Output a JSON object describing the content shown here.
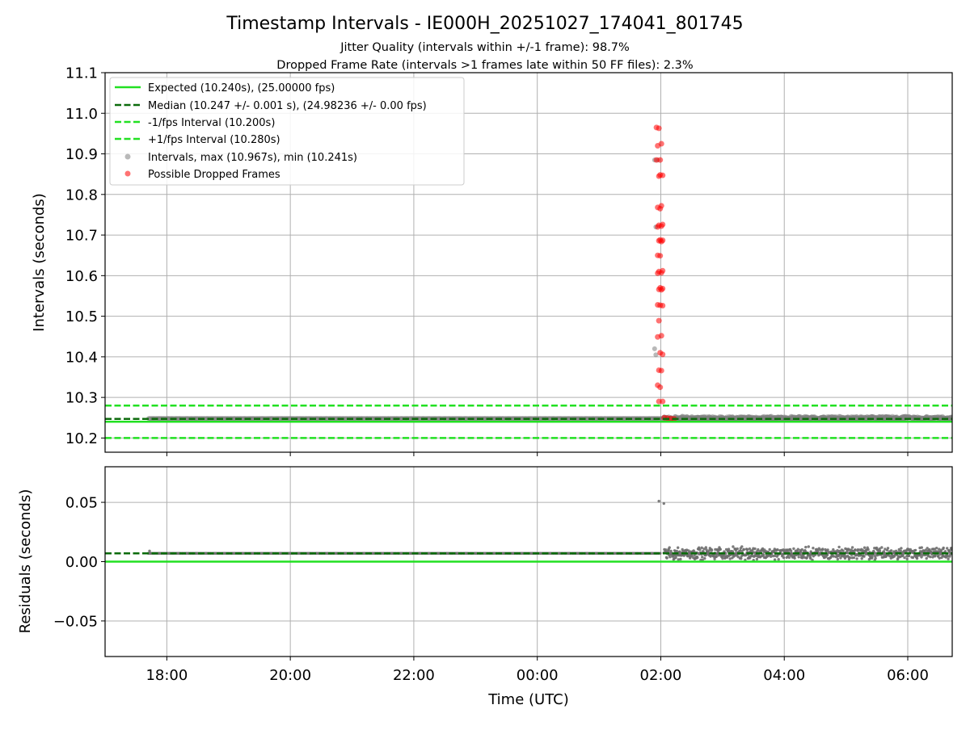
{
  "chart_data": [
    {
      "type": "scatter",
      "title": "Timestamp Intervals - IE000H_20251027_174041_801745",
      "subtitle_lines": [
        "Jitter Quality (intervals within +/-1 frame): 98.7%",
        "Dropped Frame Rate (intervals >1 frames late within 50 FF files): 2.3%"
      ],
      "xlabel": "",
      "ylabel": "Intervals (seconds)",
      "xlim_hours": [
        17.0,
        30.72
      ],
      "ylim": [
        10.165,
        11.1
      ],
      "yticks": [
        10.2,
        10.3,
        10.4,
        10.5,
        10.6,
        10.7,
        10.8,
        10.9,
        11.0,
        11.1
      ],
      "ytick_labels": [
        "10.2",
        "10.3",
        "10.4",
        "10.5",
        "10.6",
        "10.7",
        "10.8",
        "10.9",
        "11.0",
        "11.1"
      ],
      "grid": true,
      "legend_position": "top-left",
      "legend": [
        "Expected (10.240s), (25.00000 fps)",
        "Median (10.247 +/- 0.001 s), (24.98236 +/- 0.00 fps)",
        "-1/fps Interval (10.200s)",
        "+1/fps Interval (10.280s)",
        "Intervals, max (10.967s), min (10.241s)",
        "Possible Dropped Frames"
      ],
      "reference_lines": [
        {
          "name": "Expected",
          "y": 10.24,
          "style": "solid",
          "color": "#22e022"
        },
        {
          "name": "Median",
          "y": 10.247,
          "style": "dashed",
          "color": "#0b6b0b"
        },
        {
          "name": "-1/fps Interval",
          "y": 10.2,
          "style": "dashed",
          "color": "#22e022"
        },
        {
          "name": "+1/fps Interval",
          "y": 10.28,
          "style": "dashed",
          "color": "#22e022"
        }
      ],
      "series": [
        {
          "name": "Intervals",
          "color": "#808080",
          "segments": [
            {
              "x_start": 17.7,
              "x_end": 29.95,
              "y": 10.248
            },
            {
              "x_start": 26.05,
              "x_end": 30.72,
              "y": 10.249,
              "spread": 0.005
            }
          ],
          "outliers": [
            {
              "x": 25.9,
              "y": 10.885
            },
            {
              "x": 25.92,
              "y": 10.72
            },
            {
              "x": 25.9,
              "y": 10.42
            },
            {
              "x": 25.92,
              "y": 10.405
            },
            {
              "x": 25.95,
              "y": 10.885
            }
          ]
        },
        {
          "name": "Possible Dropped Frames",
          "color": "#ff0000",
          "x_range": [
            25.93,
            26.25
          ],
          "y_values": [
            10.965,
            10.963,
            10.925,
            10.92,
            10.885,
            10.885,
            10.848,
            10.847,
            10.845,
            10.772,
            10.768,
            10.765,
            10.726,
            10.724,
            10.722,
            10.72,
            10.688,
            10.687,
            10.686,
            10.684,
            10.65,
            10.649,
            10.612,
            10.61,
            10.607,
            10.606,
            10.57,
            10.568,
            10.566,
            10.565,
            10.528,
            10.527,
            10.526,
            10.489,
            10.452,
            10.449,
            10.41,
            10.406,
            10.367,
            10.366,
            10.33,
            10.325,
            10.29,
            10.29,
            10.25,
            10.249,
            10.248,
            10.247
          ]
        }
      ]
    },
    {
      "type": "scatter",
      "xlabel": "Time (UTC)",
      "ylabel": "Residuals (seconds)",
      "xlim_hours": [
        17.0,
        30.72
      ],
      "xtick_hours": [
        18,
        20,
        22,
        24,
        26,
        28,
        30
      ],
      "xtick_labels": [
        "18:00",
        "20:00",
        "22:00",
        "00:00",
        "02:00",
        "04:00",
        "06:00"
      ],
      "ylim": [
        -0.08,
        0.08
      ],
      "yticks": [
        -0.05,
        0.0,
        0.05
      ],
      "ytick_labels": [
        "−0.05",
        "0.00",
        "0.05"
      ],
      "grid": true,
      "reference_lines": [
        {
          "name": "Expected",
          "y": 0.0,
          "style": "solid",
          "color": "#22e022"
        },
        {
          "name": "Median",
          "y": 0.007,
          "style": "dashed",
          "color": "#0b6b0b"
        }
      ],
      "series": [
        {
          "name": "Residuals",
          "color": "#6e6e6e",
          "segments": [
            {
              "x_start": 17.7,
              "x_end": 26.0,
              "y": 0.007
            },
            {
              "x_start": 26.05,
              "x_end": 30.72,
              "y": 0.007,
              "spread": 0.006
            }
          ],
          "outliers": [
            {
              "x": 25.97,
              "y": 0.051
            },
            {
              "x": 26.05,
              "y": 0.049
            },
            {
              "x": 17.72,
              "y": 0.009
            }
          ]
        }
      ]
    }
  ],
  "colors": {
    "expected": "#22e022",
    "median": "#0b6b0b",
    "intervals": "#808080",
    "dropped": "#ff0000",
    "grid": "#b0b0b0"
  }
}
